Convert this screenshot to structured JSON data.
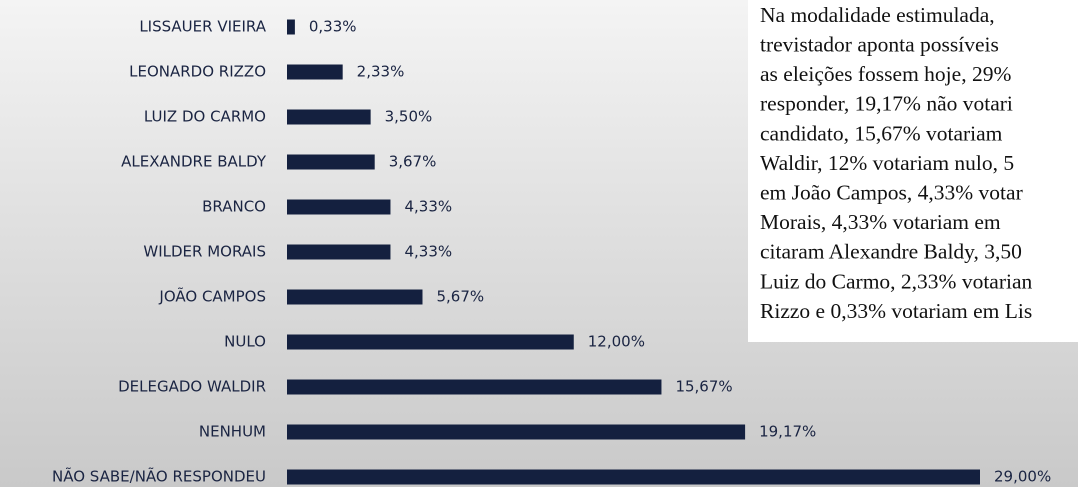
{
  "chart_data": {
    "type": "barh",
    "categories": [
      "LISSAUER VIEIRA",
      "LEONARDO RIZZO",
      "LUIZ DO CARMO",
      "ALEXANDRE BALDY",
      "BRANCO",
      "WILDER MORAIS",
      "JOÃO CAMPOS",
      "NULO",
      "DELEGADO WALDIR",
      "NENHUM",
      "NÃO SABE/NÃO RESPONDEU"
    ],
    "values": [
      0.33,
      2.33,
      3.5,
      3.67,
      4.33,
      4.33,
      5.67,
      12,
      15.67,
      19.17,
      29
    ],
    "value_labels": [
      "0,33%",
      "2,33%",
      "3,50%",
      "3,67%",
      "4,33%",
      "4,33%",
      "5,67%",
      "12,00%",
      "15,67%",
      "19,17%",
      "29,00%"
    ],
    "color": "#14203f",
    "annotation_lines": [
      "Na modalidade estimulada,",
      "trevistador aponta possíveis",
      "as eleições fossem hoje, 29%",
      "responder, 19,17% não votari",
      "candidato, 15,67% votariam",
      "Waldir, 12% votariam nulo, 5",
      "em João Campos, 4,33% votar",
      "Morais, 4,33% votariam em",
      "citaram Alexandre Baldy, 3,50",
      "Luiz do Carmo, 2,33% votarian",
      "Rizzo e 0,33% votariam em Lis"
    ]
  }
}
